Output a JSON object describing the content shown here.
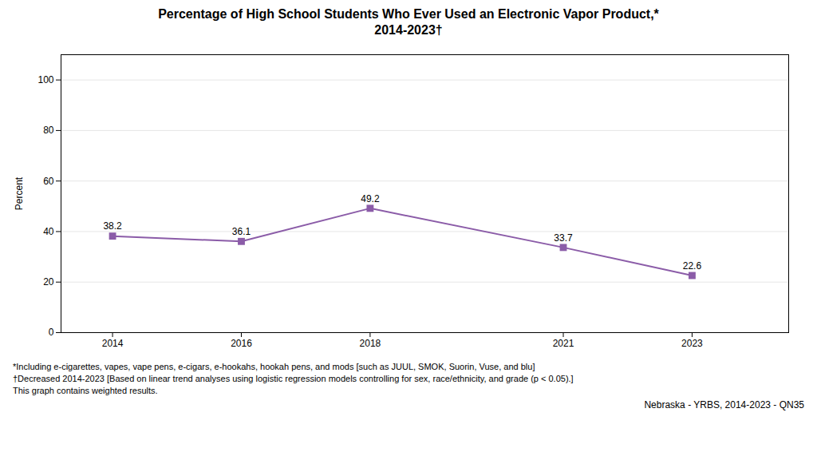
{
  "chart_data": {
    "type": "line",
    "title": "Percentage of High School Students Who Ever Used an Electronic Vapor Product,*",
    "subtitle": "2014-2023†",
    "x": [
      2014,
      2016,
      2018,
      2021,
      2023
    ],
    "values": [
      38.2,
      36.1,
      49.2,
      33.7,
      22.6
    ],
    "color": "#8b5ca8",
    "marker": "square",
    "ylabel": "Percent",
    "xlim": [
      2013.2,
      2024.5
    ],
    "xticks": [
      2014,
      2016,
      2018,
      2021,
      2023
    ],
    "ylim": [
      0,
      110
    ],
    "yticks": [
      0,
      20,
      40,
      60,
      80,
      100
    ],
    "grid": true,
    "data_labels": true,
    "annotations": [
      "*Including e-cigarettes, vapes, vape pens, e-cigars, e-hookahs, hookah pens, and mods [such as JUUL, SMOK, Suorin, Vuse, and blu]",
      "†Decreased 2014-2023 [Based on linear trend analyses using logistic regression models controlling for sex, race/ethnicity, and grade (p < 0.05).]",
      "This graph contains weighted results.",
      "Nebraska - YRBS, 2014-2023 - QN35"
    ]
  }
}
